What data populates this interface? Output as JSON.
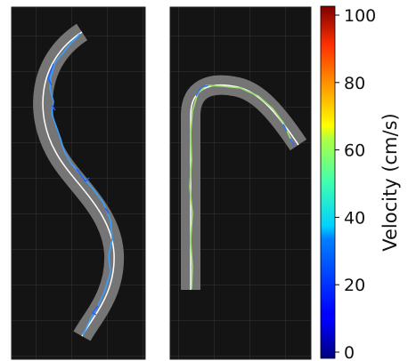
{
  "chart_data": [
    {
      "type": "path_map",
      "panel": "left",
      "background": "#141414",
      "track_color": "#7a7a7a",
      "centerline_color": "#ffffff",
      "grid": true,
      "trajectory_velocity_range_cm_s": [
        20,
        45
      ],
      "trajectory_shape": "S-curve"
    },
    {
      "type": "path_map",
      "panel": "right",
      "background": "#141414",
      "track_color": "#7a7a7a",
      "centerline_color": "#ffffff",
      "grid": true,
      "trajectory_velocity_range_cm_s": [
        30,
        60
      ],
      "trajectory_shape": "hook / inverted-J"
    }
  ],
  "colorbar": {
    "label": "Velocity (cm/s)",
    "ticks": [
      "0",
      "20",
      "40",
      "60",
      "80",
      "100"
    ],
    "tick_values": [
      0,
      20,
      40,
      60,
      80,
      100
    ],
    "range": [
      0,
      100
    ],
    "colormap": "jet"
  }
}
